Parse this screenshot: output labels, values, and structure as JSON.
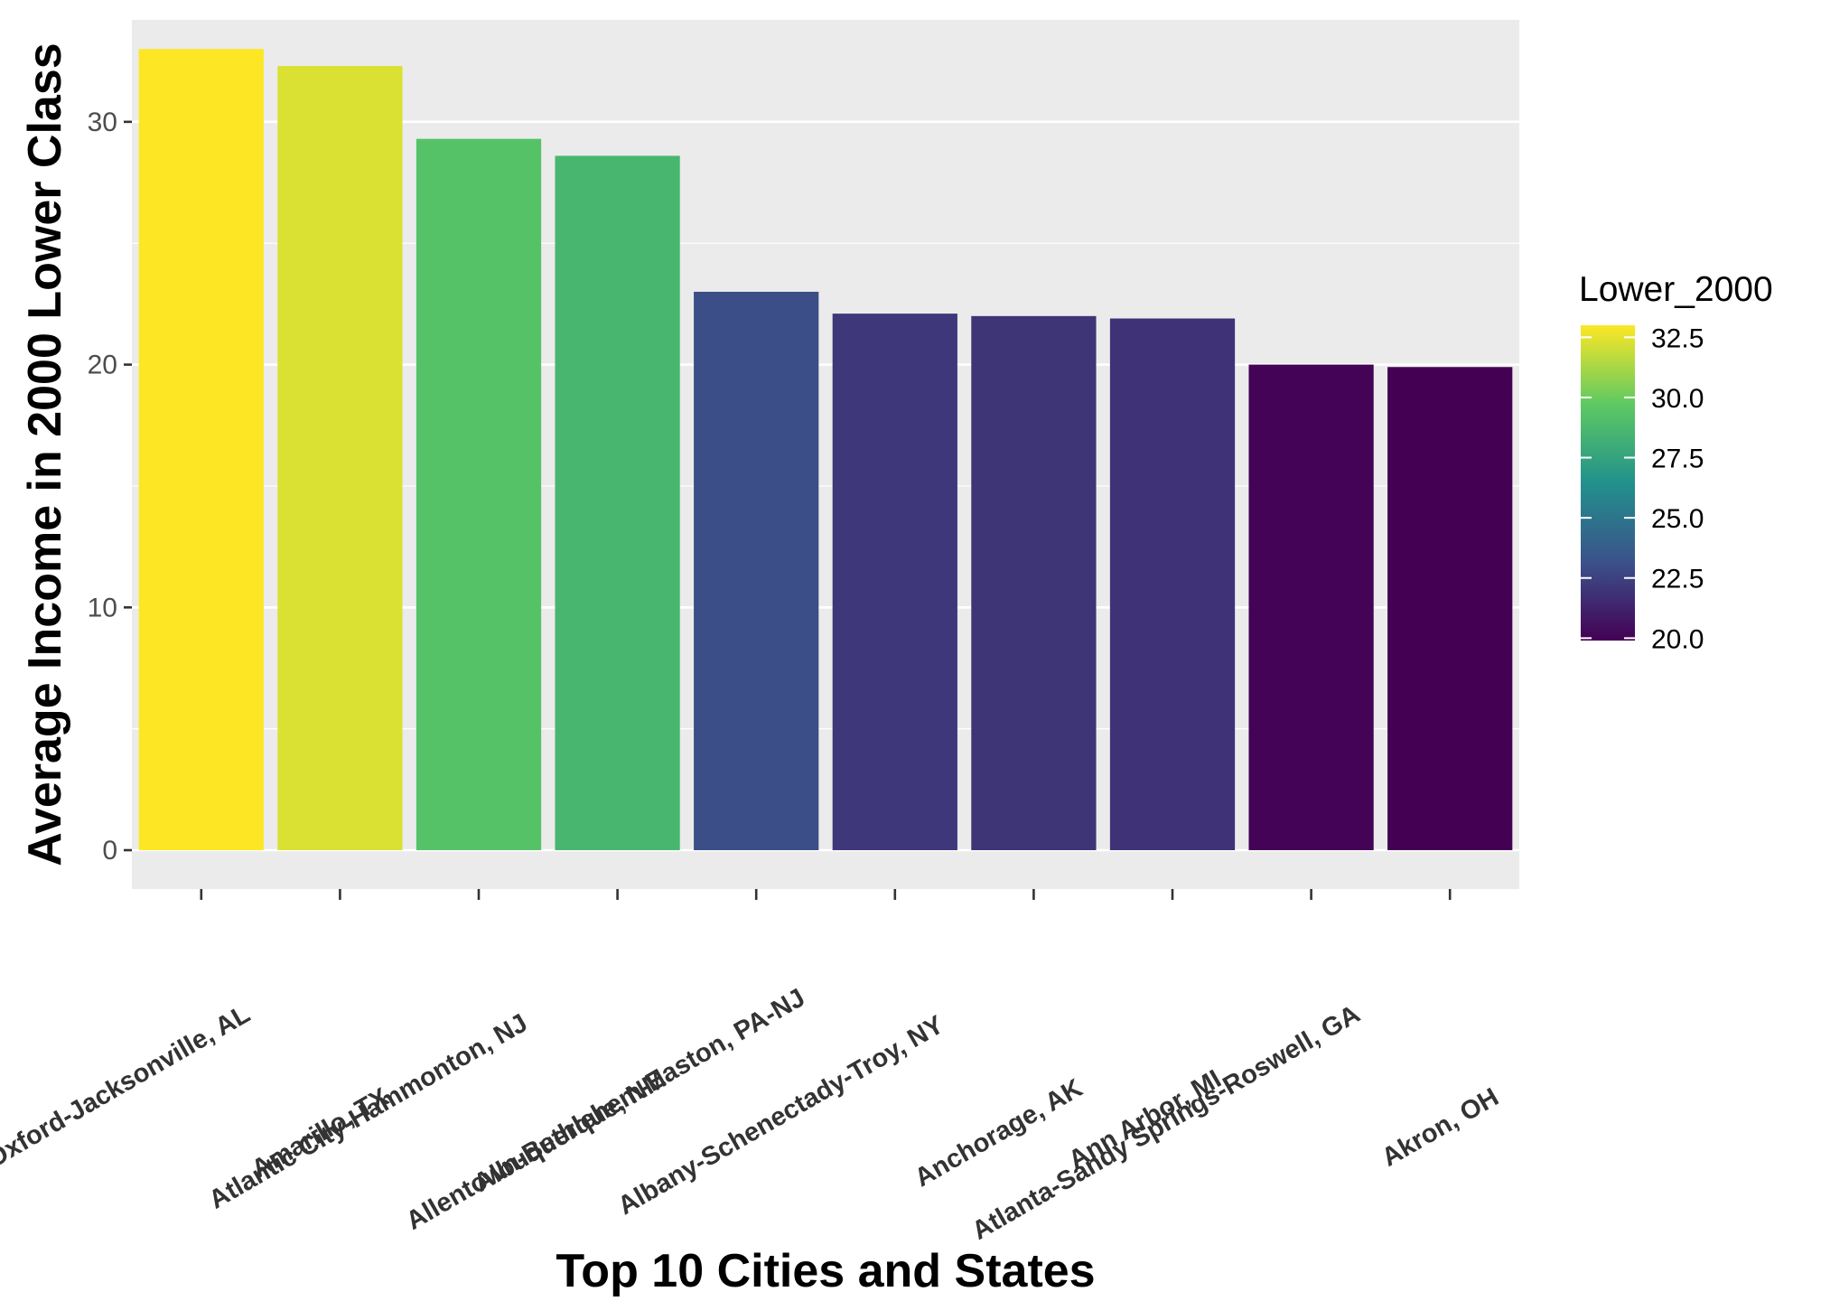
{
  "chart_data": {
    "type": "bar",
    "title": "",
    "xlabel": "Top 10 Cities and States",
    "ylabel": "Average Income in 2000 Lower Class",
    "ylim": [
      -1.6,
      34.2
    ],
    "yticks": [
      0,
      10,
      20,
      30
    ],
    "categories": [
      "Anniston-Oxford-Jacksonville, AL",
      "Amarillo, TX",
      "Atlantic City-Hammonton, NJ",
      "Albuquerque, NM",
      "Allentown-Bethlehem-Easton, PA-NJ",
      "Albany-Schenectady-Troy, NY",
      "Anchorage, AK",
      "Ann Arbor, MI",
      "Atlanta-Sandy Springs-Roswell, GA",
      "Akron, OH"
    ],
    "series": [
      {
        "values": [
          33.0,
          32.3,
          29.3,
          28.6,
          23.0,
          22.1,
          22.0,
          21.9,
          20.0,
          19.9
        ]
      }
    ],
    "grid": true,
    "legend": {
      "title": "Lower_2000",
      "position": "right",
      "type": "colorbar",
      "range": [
        19.9,
        33.0
      ],
      "breaks": [
        20.0,
        22.5,
        25.0,
        27.5,
        30.0,
        32.5
      ],
      "break_labels": [
        "20.0",
        "22.5",
        "25.0",
        "27.5",
        "30.0",
        "32.5"
      ]
    },
    "colors": {
      "panel_background": "#ebebeb",
      "grid": "#ffffff",
      "tick": "#333333",
      "palette": "viridis"
    }
  }
}
